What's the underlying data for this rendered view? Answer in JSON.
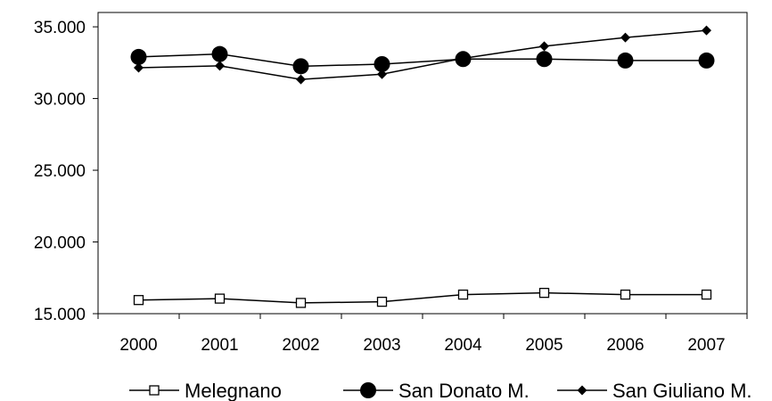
{
  "chart_data": {
    "type": "line",
    "title": "",
    "xlabel": "",
    "ylabel": "",
    "categories": [
      "2000",
      "2001",
      "2002",
      "2003",
      "2004",
      "2005",
      "2006",
      "2007"
    ],
    "ylim": [
      15000,
      36000
    ],
    "yticks": [
      15000,
      20000,
      25000,
      30000,
      35000
    ],
    "ytick_labels": [
      "15.000",
      "20.000",
      "25.000",
      "30.000",
      "35.000"
    ],
    "grid": false,
    "legend_position": "bottom",
    "series": [
      {
        "name": "Melegnano",
        "marker": "square-open",
        "color": "#000000",
        "values": [
          15950,
          16050,
          15750,
          15830,
          16330,
          16450,
          16330,
          16330
        ]
      },
      {
        "name": "San Donato M.",
        "marker": "circle-filled",
        "color": "#000000",
        "values": [
          32900,
          33100,
          32250,
          32400,
          32750,
          32750,
          32650,
          32650
        ]
      },
      {
        "name": "San Giuliano M.",
        "marker": "diamond-filled",
        "color": "#000000",
        "values": [
          32150,
          32280,
          31330,
          31700,
          32800,
          33650,
          34250,
          34750
        ]
      }
    ]
  }
}
